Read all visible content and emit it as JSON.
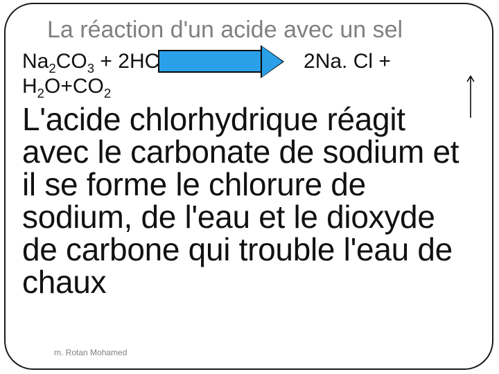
{
  "title": "La réaction d'un acide avec un sel",
  "equation": {
    "left_species": [
      {
        "base": "Na",
        "sub": "2"
      },
      {
        "base": "CO",
        "sub": "3"
      },
      {
        "plus": " + "
      },
      {
        "coef": "2",
        "base": "HCl"
      }
    ],
    "right_line1": [
      {
        "coef": "2",
        "base": "Na. Cl +"
      }
    ],
    "right_line2": [
      {
        "base": "H",
        "sub": "2"
      },
      {
        "base": "O+CO",
        "sub": "2"
      }
    ],
    "arrow": {
      "fill": "#2aa0e8",
      "stroke": "#0a0a0a",
      "shaft_w": 150,
      "shaft_h": 33,
      "head_len": 30,
      "head_half": 22,
      "stroke_w": 2
    }
  },
  "side_arrow": {
    "stroke": "#0a0a0a",
    "stroke_w": 1.6
  },
  "body": "L'acide chlorhydrique réagit avec le carbonate de sodium et il se forme le chlorure de sodium, de l'eau et le dioxyde de carbone qui trouble l'eau de chaux",
  "footnote": "m. Rotan Mohamed"
}
